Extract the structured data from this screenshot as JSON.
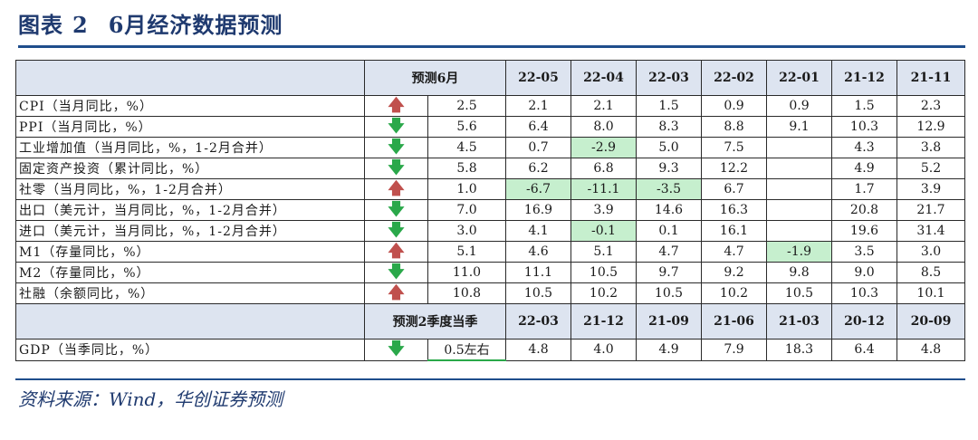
{
  "figure": {
    "label": "图表",
    "number": "2",
    "title": "6月经济数据预测"
  },
  "table": {
    "header1": [
      "预测6月",
      "22-05",
      "22-04",
      "22-03",
      "22-02",
      "22-01",
      "21-12",
      "21-11"
    ],
    "rows": [
      {
        "label": "CPI（当月同比，%）",
        "trend": "up",
        "forecast": "2.5",
        "values": [
          "2.1",
          "2.1",
          "1.5",
          "0.9",
          "0.9",
          "1.5",
          "2.3"
        ],
        "highlight": []
      },
      {
        "label": "PPI（当月同比，%）",
        "trend": "down",
        "forecast": "5.6",
        "values": [
          "6.4",
          "8.0",
          "8.3",
          "8.8",
          "9.1",
          "10.3",
          "12.9"
        ],
        "highlight": []
      },
      {
        "label": "工业增加值（当月同比，%，1-2月合并）",
        "trend": "down",
        "forecast": "4.5",
        "values": [
          "0.7",
          "-2.9",
          "5.0",
          "7.5",
          "",
          "4.3",
          "3.8"
        ],
        "highlight": [
          1
        ]
      },
      {
        "label": "固定资产投资（累计同比，%）",
        "trend": "down",
        "forecast": "5.8",
        "values": [
          "6.2",
          "6.8",
          "9.3",
          "12.2",
          "",
          "4.9",
          "5.2"
        ],
        "highlight": []
      },
      {
        "label": "社零（当月同比，%，1-2月合并）",
        "trend": "up",
        "forecast": "1.0",
        "values": [
          "-6.7",
          "-11.1",
          "-3.5",
          "6.7",
          "",
          "1.7",
          "3.9"
        ],
        "highlight": [
          0,
          1,
          2
        ]
      },
      {
        "label": "出口（美元计，当月同比，%，1-2月合并）",
        "trend": "down",
        "forecast": "7.0",
        "values": [
          "16.9",
          "3.9",
          "14.6",
          "16.3",
          "",
          "20.8",
          "21.7"
        ],
        "highlight": []
      },
      {
        "label": "进口（美元计，当月同比，%，1-2月合并）",
        "trend": "down",
        "forecast": "3.0",
        "values": [
          "4.1",
          "-0.1",
          "0.1",
          "16.1",
          "",
          "19.6",
          "31.4"
        ],
        "highlight": [
          1
        ]
      },
      {
        "label": "M1（存量同比，%）",
        "trend": "up",
        "forecast": "5.1",
        "values": [
          "4.6",
          "5.1",
          "4.7",
          "4.7",
          "-1.9",
          "3.5",
          "3.0"
        ],
        "highlight": [
          4
        ]
      },
      {
        "label": "M2（存量同比，%）",
        "trend": "down",
        "forecast": "11.0",
        "values": [
          "11.1",
          "10.5",
          "9.7",
          "9.2",
          "9.8",
          "9.0",
          "8.5"
        ],
        "highlight": []
      },
      {
        "label": "社融（余额同比，%）",
        "trend": "up",
        "forecast": "10.8",
        "values": [
          "10.5",
          "10.2",
          "10.5",
          "10.2",
          "10.5",
          "10.3",
          "10.1"
        ],
        "highlight": []
      }
    ],
    "header2": [
      "预测2季度当季",
      "22-03",
      "21-12",
      "21-09",
      "21-06",
      "21-03",
      "20-12",
      "20-09"
    ],
    "gdp": {
      "label": "GDP（当季同比，%）",
      "trend": "down",
      "forecast": "0.5左右",
      "values": [
        "4.8",
        "4.0",
        "4.9",
        "7.9",
        "18.3",
        "6.4",
        "4.8"
      ]
    }
  },
  "source": "资料来源：Wind，华创证券预测",
  "colors": {
    "up_arrow": "#c0504d",
    "down_arrow": "#2aa84a",
    "highlight": "#c6efce",
    "header_bg": "#dde4f0",
    "title": "#1f3a6f"
  }
}
